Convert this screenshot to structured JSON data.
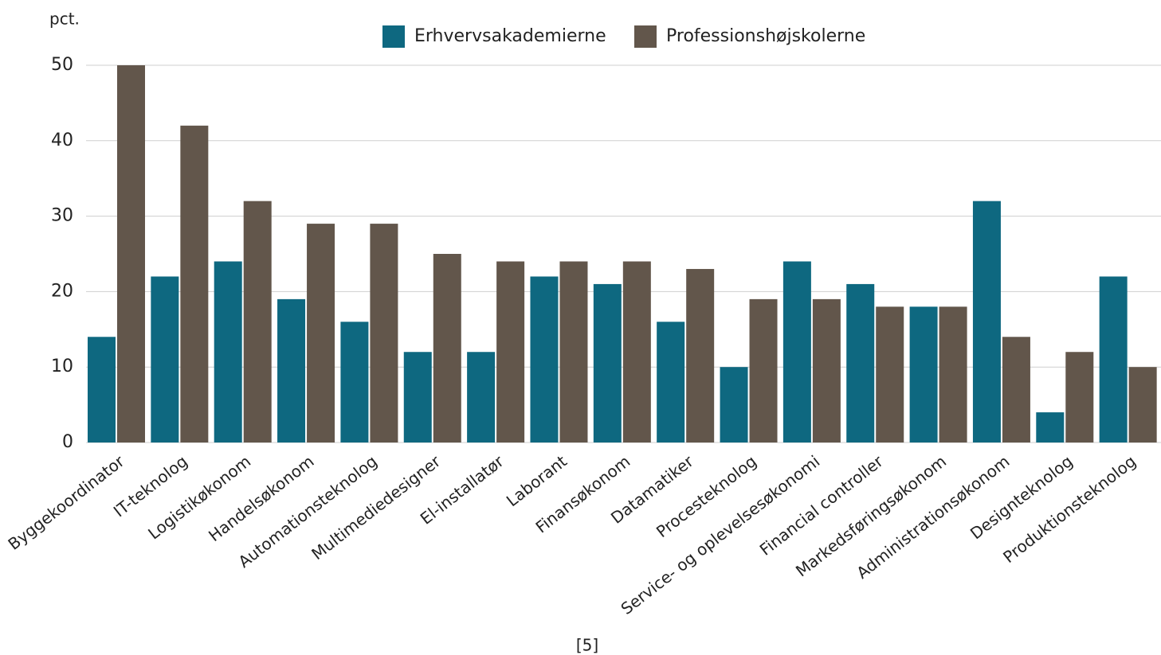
{
  "chart_data": {
    "type": "bar",
    "y_axis_label": "pct.",
    "categories": [
      "Byggekoordinator",
      "IT-teknolog",
      "Logistikøkonom",
      "Handelsøkonom",
      "Automationsteknolog",
      "Multimediedesigner",
      "El-installatør",
      "Laborant",
      "Finansøkonom",
      "Datamatiker",
      "Procesteknolog",
      "Service- og oplevelsesøkonomi",
      "Financial controller",
      "Markedsføringsøkonom",
      "Administrationsøkonom",
      "Designteknolog",
      "Produktionsteknolog"
    ],
    "series": [
      {
        "name": "Erhvervsakademierne",
        "color": "#0e6880",
        "values": [
          14,
          22,
          24,
          19,
          16,
          12,
          12,
          22,
          21,
          16,
          10,
          24,
          21,
          18,
          32,
          4,
          22
        ]
      },
      {
        "name": "Professionshøjskolerne",
        "color": "#62564b",
        "values": [
          50,
          42,
          32,
          29,
          29,
          25,
          24,
          24,
          24,
          23,
          19,
          19,
          18,
          18,
          14,
          12,
          10
        ]
      }
    ],
    "ylim": [
      0,
      50
    ],
    "yticks": [
      0,
      10,
      20,
      30,
      40,
      50
    ],
    "grid": true,
    "legend": "top",
    "note": "[5]"
  }
}
